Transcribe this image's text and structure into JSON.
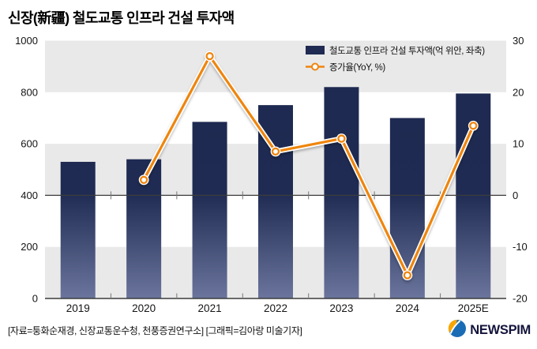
{
  "title": "신장(新疆) 철도교통 인프라 건설 투자액",
  "legend": {
    "bar_label": "철도교통 인프라 건설 투자액(억 위안, 좌축)",
    "line_label": "증가율(YoY, %)"
  },
  "chart_data": {
    "type": "bar+line",
    "categories": [
      "2019",
      "2020",
      "2021",
      "2022",
      "2023",
      "2024",
      "2025E"
    ],
    "series": [
      {
        "name": "철도교통 인프라 건설 투자액(억 위안, 좌축)",
        "type": "bar",
        "axis": "left",
        "values": [
          530,
          540,
          685,
          750,
          820,
          700,
          795
        ]
      },
      {
        "name": "증가율(YoY, %)",
        "type": "line",
        "axis": "right",
        "values": [
          null,
          3,
          27,
          8.5,
          11,
          -15.5,
          13.5
        ]
      }
    ],
    "left_axis": {
      "min": 0,
      "max": 1000,
      "ticks": [
        0,
        200,
        400,
        600,
        800,
        1000
      ]
    },
    "right_axis": {
      "min": -20,
      "max": 30,
      "ticks": [
        -20,
        -10,
        0,
        10,
        20,
        30
      ]
    },
    "grid": "alternating-gray-bands",
    "legend_position": "top-right-inside",
    "zero_line_on_right_axis": true
  },
  "footer": {
    "source": "[자료=퉁화순재경, 신장교통운수청, 천풍증권연구소] [그래픽=김아랑 미술기자]",
    "logo_text": "NEWSPIM"
  },
  "colors": {
    "bar": "#1f2b52",
    "bar_bottom_fade": "#6e78a0",
    "line": "#ef8511",
    "band_gray": "#e9e9e9",
    "axis_line": "#3c3c3c",
    "tick": "#777777",
    "text": "#141414",
    "logo_blue": "#1a6cb5",
    "logo_yellow": "#f7a600",
    "logo_navy": "#14143c"
  }
}
